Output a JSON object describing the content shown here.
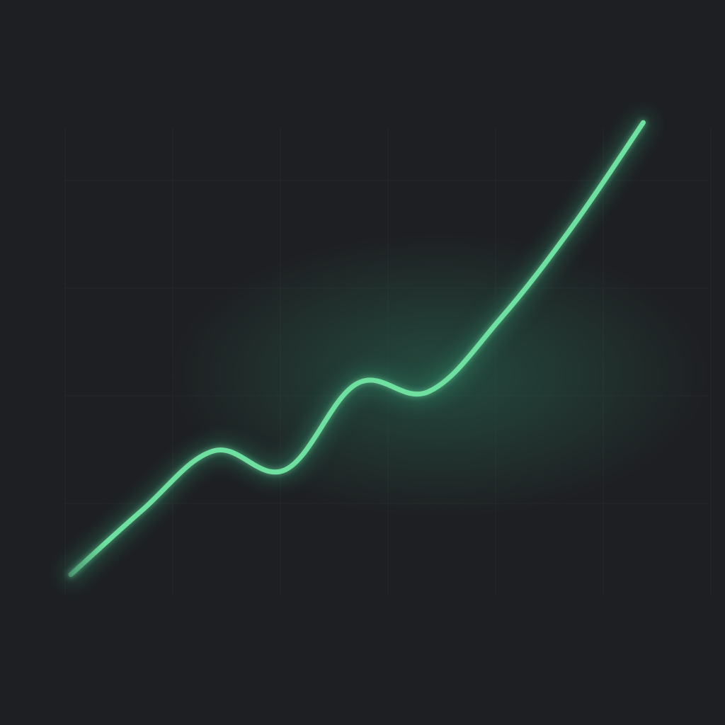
{
  "chart_data": {
    "type": "line",
    "title": "",
    "xlabel": "",
    "ylabel": "",
    "grid": true,
    "legend": "none",
    "x": [
      0,
      1,
      2,
      3,
      4,
      5,
      6,
      7,
      8
    ],
    "xlim": [
      0,
      8.5
    ],
    "ylim": [
      0,
      10
    ],
    "series": [
      {
        "name": "",
        "values": [
          0.9,
          2.1,
          3.2,
          2.85,
          4.45,
          4.3,
          5.65,
          7.35,
          9.3
        ]
      }
    ]
  },
  "colors": {
    "background": "#1e1f22",
    "grid": "#25272a",
    "line": "#6ee0a0",
    "glow": "#2f8a6a"
  }
}
